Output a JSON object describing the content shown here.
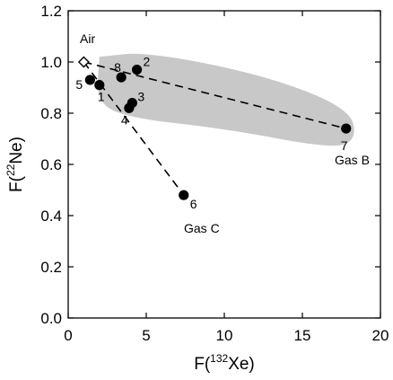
{
  "chart_data": {
    "type": "scatter",
    "xlabel_prefix": "F(",
    "xlabel_sup": "132",
    "xlabel_suffix": "Xe)",
    "ylabel_prefix": "F(",
    "ylabel_sup": "22",
    "ylabel_suffix": "Ne)",
    "xlim": [
      0,
      20
    ],
    "ylim": [
      0.0,
      1.2
    ],
    "xticks": [
      0,
      5,
      10,
      15,
      20
    ],
    "xtick_labels": [
      "0",
      "5",
      "10",
      "15",
      "20"
    ],
    "yticks": [
      0.0,
      0.2,
      0.4,
      0.6,
      0.8,
      1.0,
      1.2
    ],
    "ytick_labels": [
      "0.0",
      "0.2",
      "0.4",
      "0.6",
      "0.8",
      "1.0",
      "1.2"
    ],
    "grid": false,
    "points": [
      {
        "label": "1",
        "x": 2.0,
        "y": 0.91
      },
      {
        "label": "2",
        "x": 4.4,
        "y": 0.97
      },
      {
        "label": "3",
        "x": 4.1,
        "y": 0.84
      },
      {
        "label": "4",
        "x": 3.9,
        "y": 0.82
      },
      {
        "label": "5",
        "x": 1.4,
        "y": 0.93
      },
      {
        "label": "6",
        "x": 7.4,
        "y": 0.48
      },
      {
        "label": "7",
        "x": 17.8,
        "y": 0.74
      },
      {
        "label": "8",
        "x": 3.4,
        "y": 0.94
      }
    ],
    "air_point": {
      "label": "Air",
      "x": 1.0,
      "y": 1.0
    },
    "annotations": {
      "gas_b": "Gas B",
      "gas_c": "Gas C"
    },
    "dashed_lines": [
      {
        "from": [
          1.0,
          1.0
        ],
        "to": [
          17.8,
          0.74
        ]
      },
      {
        "from": [
          1.0,
          1.0
        ],
        "to": [
          7.4,
          0.48
        ]
      }
    ],
    "shaded_region_color": "#c8c8c8",
    "marker_color": "#000000"
  }
}
